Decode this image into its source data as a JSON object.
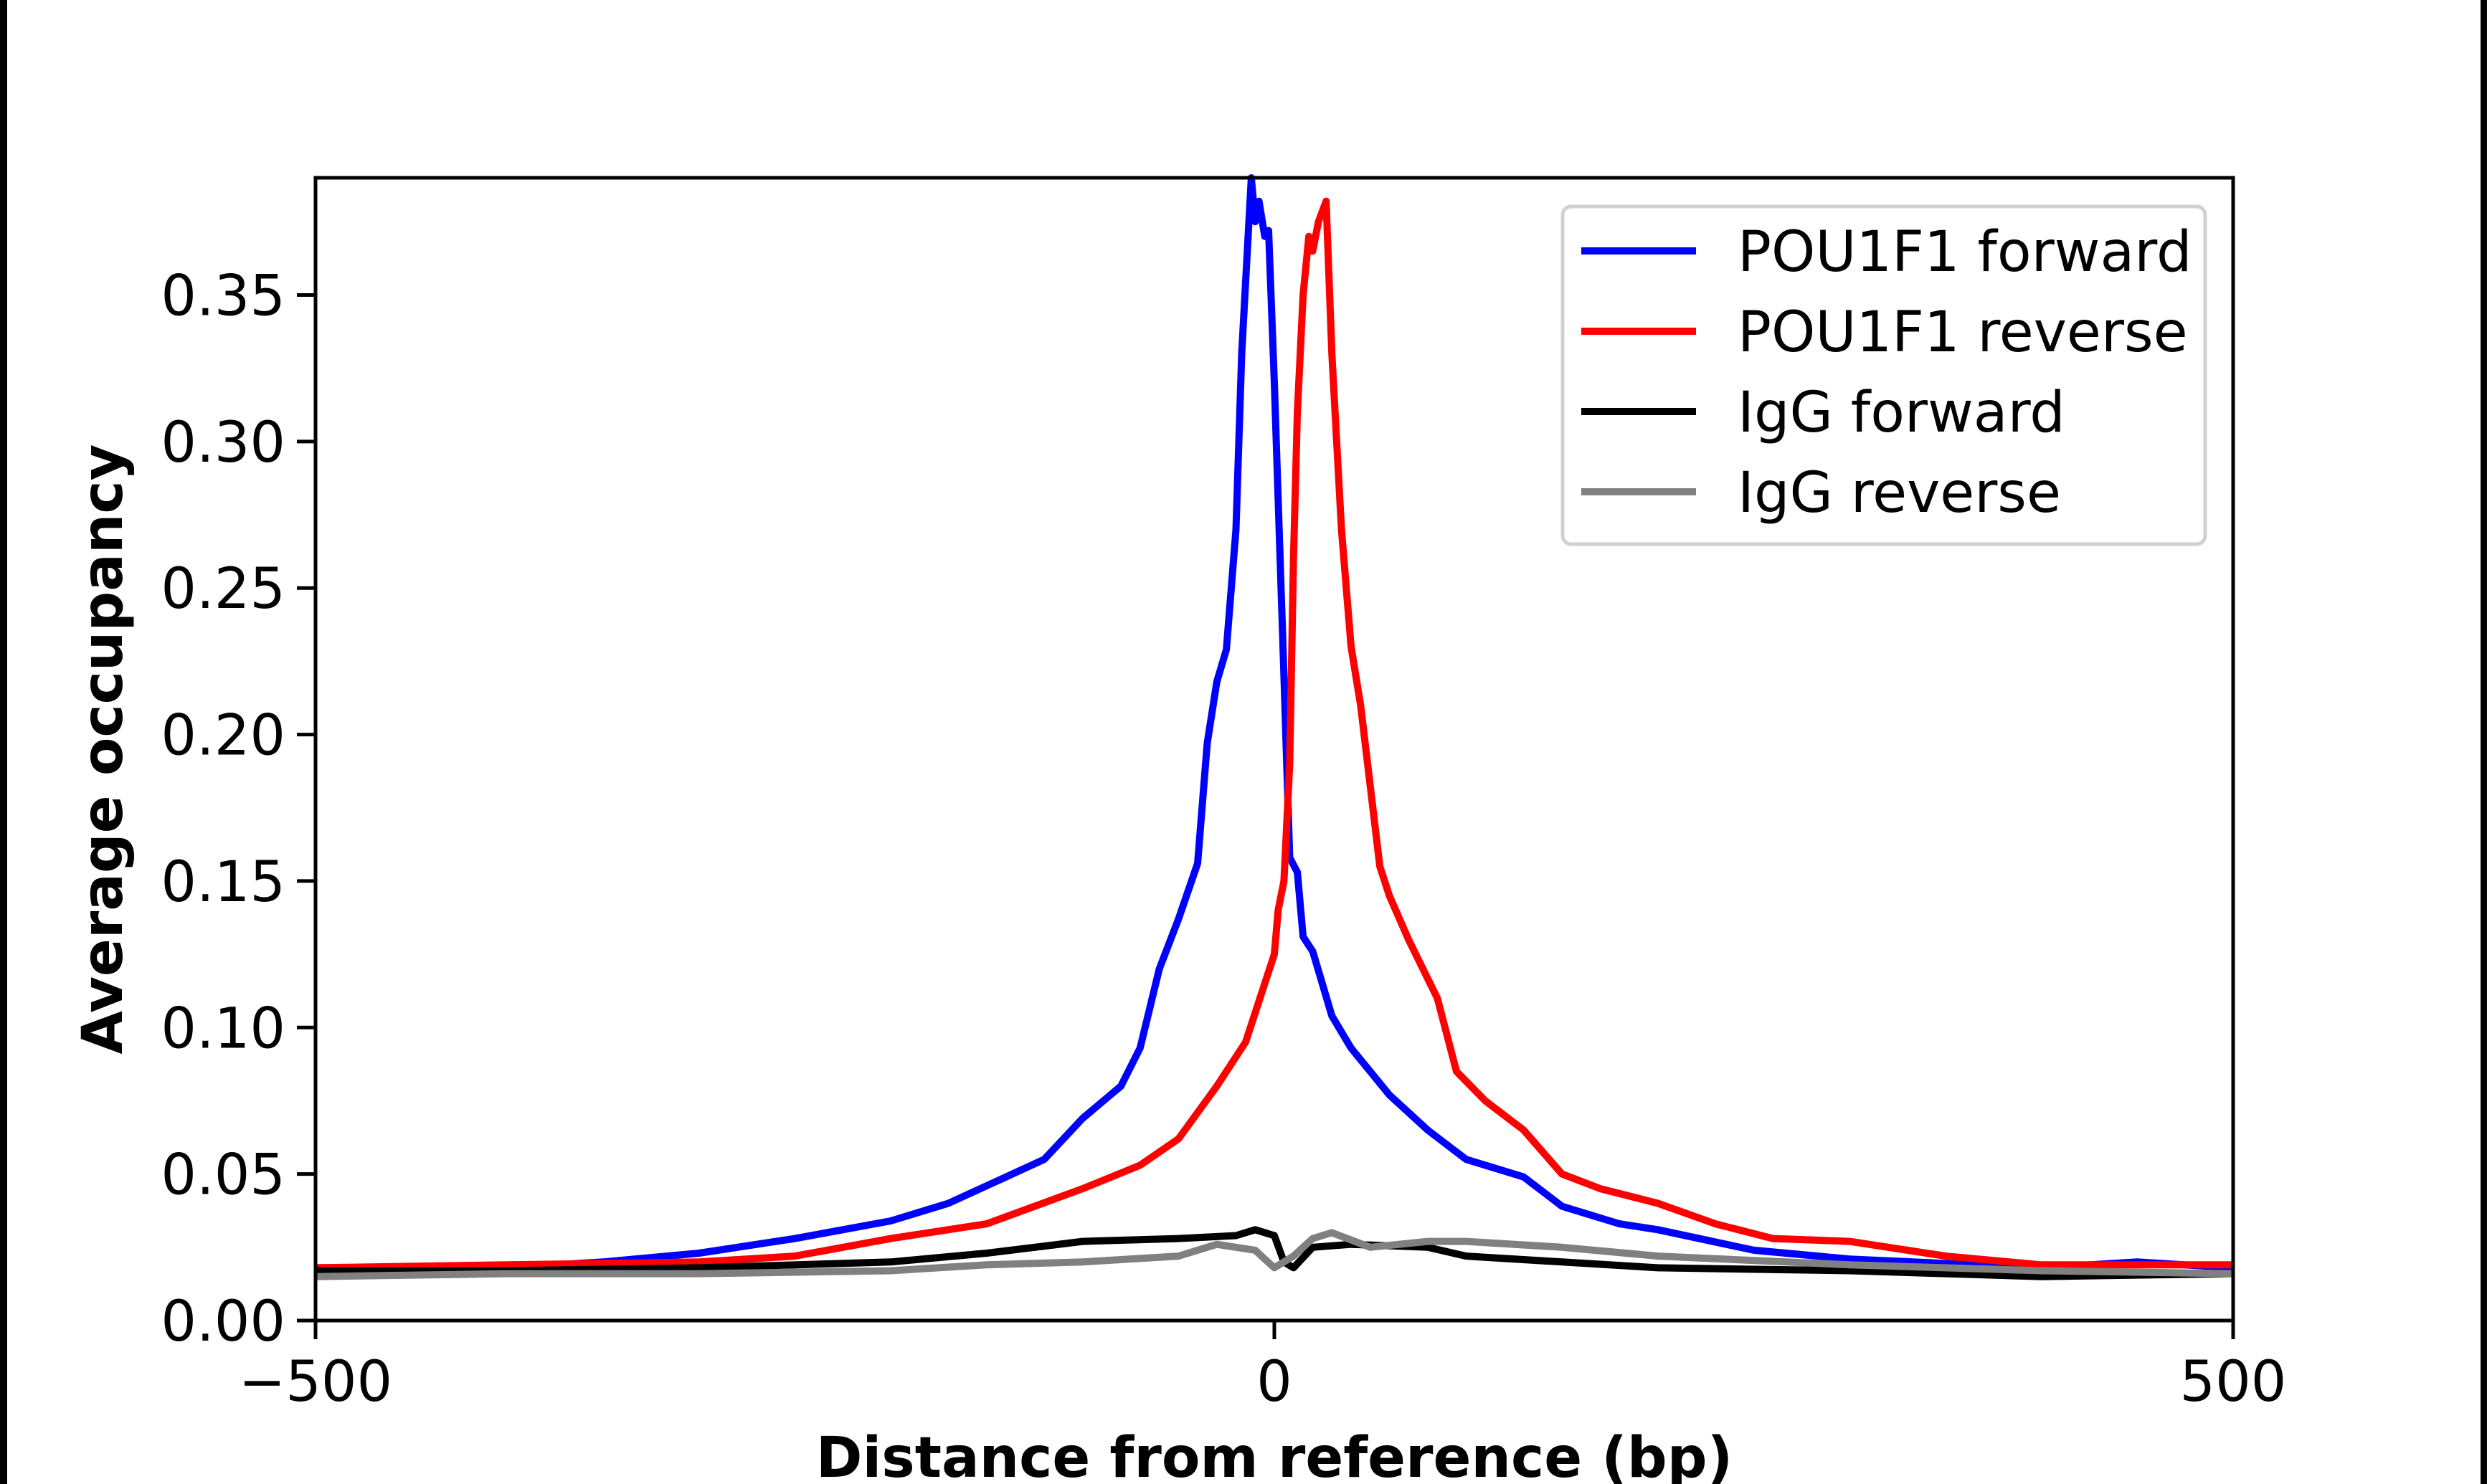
{
  "chart_data": {
    "type": "line",
    "title": "",
    "xlabel": "Distance from reference (bp)",
    "ylabel": "Average occupancy",
    "xlim": [
      -500,
      500
    ],
    "ylim": [
      0,
      0.39
    ],
    "xticks": [
      -500,
      0,
      500
    ],
    "xtick_labels": [
      "−500",
      "0",
      "500"
    ],
    "yticks": [
      0,
      0.05,
      0.1,
      0.15,
      0.2,
      0.25,
      0.3,
      0.35
    ],
    "ytick_labels": [
      "0.00",
      "0.05",
      "0.10",
      "0.15",
      "0.20",
      "0.25",
      "0.30",
      "0.35"
    ],
    "grid": false,
    "legend_position": "top-right",
    "series": [
      {
        "name": "POU1F1 forward",
        "color": "#0000ff",
        "x": [
          -500,
          -450,
          -400,
          -350,
          -300,
          -250,
          -200,
          -170,
          -150,
          -120,
          -100,
          -80,
          -70,
          -60,
          -50,
          -40,
          -35,
          -30,
          -25,
          -20,
          -17,
          -12,
          -10,
          -8,
          -5,
          -3,
          0,
          5,
          8,
          12,
          15,
          20,
          30,
          40,
          60,
          80,
          100,
          130,
          150,
          180,
          200,
          250,
          300,
          400,
          450,
          500
        ],
        "y": [
          0.018,
          0.018,
          0.018,
          0.02,
          0.023,
          0.028,
          0.034,
          0.04,
          0.046,
          0.055,
          0.069,
          0.08,
          0.093,
          0.12,
          0.137,
          0.156,
          0.197,
          0.218,
          0.229,
          0.27,
          0.33,
          0.39,
          0.375,
          0.382,
          0.37,
          0.372,
          0.32,
          0.22,
          0.158,
          0.153,
          0.131,
          0.126,
          0.104,
          0.093,
          0.077,
          0.065,
          0.055,
          0.049,
          0.039,
          0.033,
          0.031,
          0.024,
          0.021,
          0.018,
          0.02,
          0.018
        ]
      },
      {
        "name": "POU1F1 reverse",
        "color": "#ff0000",
        "x": [
          -500,
          -400,
          -300,
          -250,
          -200,
          -150,
          -100,
          -70,
          -50,
          -30,
          -15,
          -5,
          0,
          2,
          5,
          8,
          10,
          12,
          15,
          18,
          20,
          23,
          27,
          30,
          35,
          40,
          45,
          55,
          60,
          70,
          85,
          95,
          110,
          130,
          150,
          170,
          200,
          230,
          260,
          300,
          350,
          400,
          450,
          500
        ],
        "y": [
          0.018,
          0.019,
          0.02,
          0.022,
          0.028,
          0.033,
          0.045,
          0.053,
          0.062,
          0.08,
          0.095,
          0.115,
          0.125,
          0.14,
          0.15,
          0.19,
          0.26,
          0.31,
          0.35,
          0.37,
          0.365,
          0.375,
          0.382,
          0.33,
          0.27,
          0.23,
          0.21,
          0.155,
          0.145,
          0.13,
          0.11,
          0.085,
          0.075,
          0.065,
          0.05,
          0.045,
          0.04,
          0.033,
          0.028,
          0.027,
          0.022,
          0.019,
          0.019,
          0.019
        ]
      },
      {
        "name": "IgG forward",
        "color": "#000000",
        "x": [
          -500,
          -400,
          -300,
          -200,
          -150,
          -100,
          -50,
          -20,
          -10,
          0,
          5,
          10,
          20,
          40,
          80,
          100,
          150,
          200,
          300,
          400,
          500
        ],
        "y": [
          0.017,
          0.017,
          0.018,
          0.02,
          0.023,
          0.027,
          0.028,
          0.029,
          0.031,
          0.029,
          0.02,
          0.018,
          0.025,
          0.026,
          0.025,
          0.022,
          0.02,
          0.018,
          0.017,
          0.015,
          0.016
        ]
      },
      {
        "name": "IgG reverse",
        "color": "#808080",
        "x": [
          -500,
          -400,
          -300,
          -200,
          -150,
          -100,
          -50,
          -30,
          -10,
          0,
          10,
          20,
          30,
          50,
          80,
          100,
          150,
          200,
          300,
          400,
          500
        ],
        "y": [
          0.015,
          0.016,
          0.016,
          0.017,
          0.019,
          0.02,
          0.022,
          0.026,
          0.024,
          0.018,
          0.022,
          0.028,
          0.03,
          0.025,
          0.027,
          0.027,
          0.025,
          0.022,
          0.019,
          0.017,
          0.016
        ]
      }
    ]
  }
}
